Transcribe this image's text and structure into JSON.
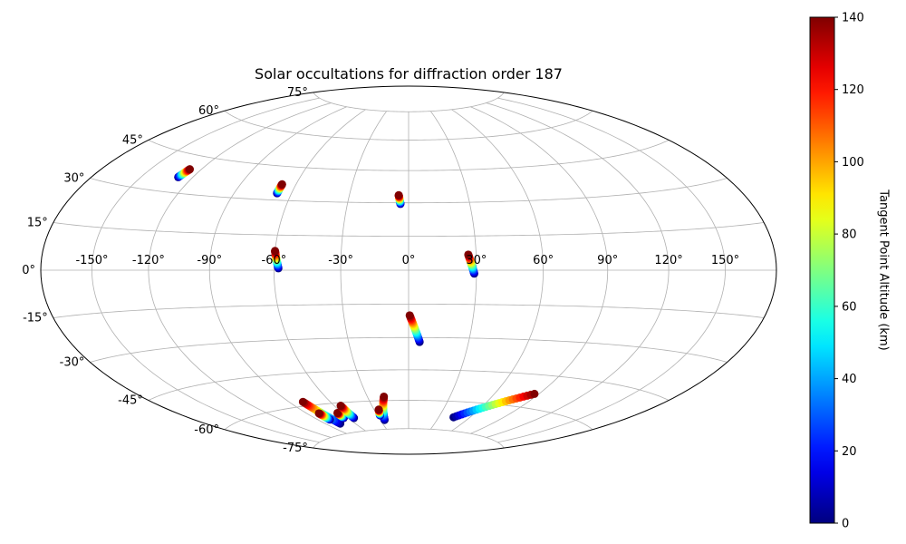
{
  "chart_data": {
    "type": "scatter",
    "projection": "hammer",
    "title": "Solar occultations for diffraction order 187",
    "xlabel": "",
    "ylabel": "",
    "grid": true,
    "x_ticks": [
      "-150°",
      "-120°",
      "-90°",
      "-60°",
      "-30°",
      "0°",
      "30°",
      "60°",
      "90°",
      "120°",
      "150°"
    ],
    "y_ticks": [
      "-75°",
      "-60°",
      "-45°",
      "-30°",
      "-15°",
      "0°",
      "15°",
      "30°",
      "45°",
      "60°",
      "75°"
    ],
    "colorbar": {
      "label": "Tangent Point Altitude (km)",
      "range": [
        0,
        140
      ],
      "ticks": [
        "0",
        "20",
        "40",
        "60",
        "80",
        "100",
        "120",
        "140"
      ],
      "colormap": "jet"
    },
    "occultations": [
      {
        "lon_start": -128.4,
        "lat_start": 36,
        "lon_end": -126.8,
        "lat_end": 39.5
      },
      {
        "lon_start": -67.5,
        "lat_start": 33,
        "lon_end": -67.5,
        "lat_end": 37
      },
      {
        "lon_start": -4,
        "lat_start": 29.5,
        "lon_end": -5,
        "lat_end": 33.5
      },
      {
        "lon_start": -58,
        "lat_start": 0.8,
        "lon_end": -60,
        "lat_end": 8.2
      },
      {
        "lon_start": 29,
        "lat_start": -1.5,
        "lon_end": 26.5,
        "lat_end": 6.8
      },
      {
        "lon_start": 5.5,
        "lat_start": -32,
        "lon_end": 0.5,
        "lat_end": -20
      },
      {
        "lon_start": -75.5,
        "lat_start": -70,
        "lon_end": -80,
        "lat_end": -58
      },
      {
        "lon_start": -79,
        "lat_start": -67.5,
        "lon_end": -80,
        "lat_end": -64
      },
      {
        "lon_start": -64,
        "lat_start": -67.5,
        "lon_end": -64,
        "lat_end": -64.8
      },
      {
        "lon_start": -54.5,
        "lat_start": -68,
        "lon_end": -55,
        "lat_end": -61.5
      },
      {
        "lon_start": -25.5,
        "lat_start": -70,
        "lon_end": -18,
        "lat_end": -58
      },
      {
        "lon_start": -27.5,
        "lat_start": -67.5,
        "lon_end": -26,
        "lat_end": -64.5
      },
      {
        "lon_start": 44.5,
        "lat_start": -68,
        "lon_end": 87,
        "lat_end": -53.5
      }
    ]
  }
}
